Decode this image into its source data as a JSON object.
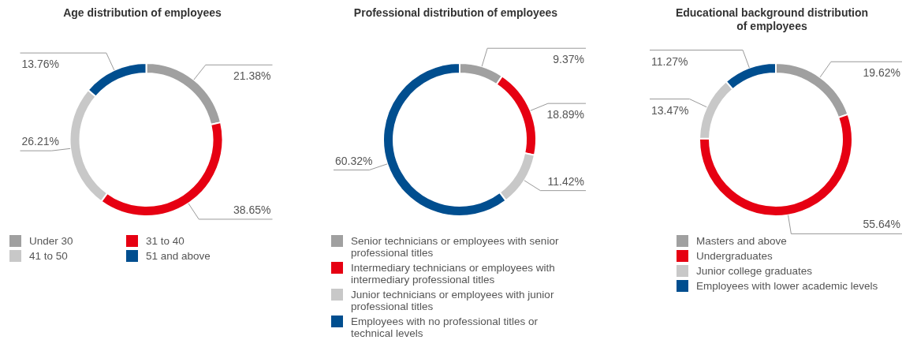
{
  "chart_data": [
    {
      "type": "donut",
      "title": "Age distribution of employees",
      "categories": [
        "Under 30",
        "31 to 40",
        "41 to 50",
        "51 and above"
      ],
      "values": [
        21.38,
        38.65,
        26.21,
        13.76
      ],
      "value_labels": [
        "21.38%",
        "38.65%",
        "26.21%",
        "13.76%"
      ],
      "colors": [
        "#a0a0a0",
        "#e60012",
        "#c8c8c8",
        "#004e8f"
      ],
      "legend": "bottom"
    },
    {
      "type": "donut",
      "title": "Professional distribution of employees",
      "categories": [
        "Senior technicians or employees with senior professional titles",
        "Intermediary technicians or employees with intermediary professional titles",
        "Junior technicians or employees with junior professional titles",
        "Employees with no professional titles or technical levels"
      ],
      "values": [
        9.37,
        18.89,
        11.42,
        60.32
      ],
      "value_labels": [
        "9.37%",
        "18.89%",
        "11.42%",
        "60.32%"
      ],
      "colors": [
        "#a0a0a0",
        "#e60012",
        "#c8c8c8",
        "#004e8f"
      ],
      "legend": "bottom"
    },
    {
      "type": "donut",
      "title": "Educational background distribution of employees",
      "categories": [
        "Masters and above",
        "Undergraduates",
        "Junior college graduates",
        "Employees with lower academic levels"
      ],
      "values": [
        19.62,
        55.64,
        13.47,
        11.27
      ],
      "value_labels": [
        "19.62%",
        "55.64%",
        "13.47%",
        "11.27%"
      ],
      "colors": [
        "#a0a0a0",
        "#e60012",
        "#c8c8c8",
        "#004e8f"
      ],
      "legend": "bottom"
    }
  ]
}
